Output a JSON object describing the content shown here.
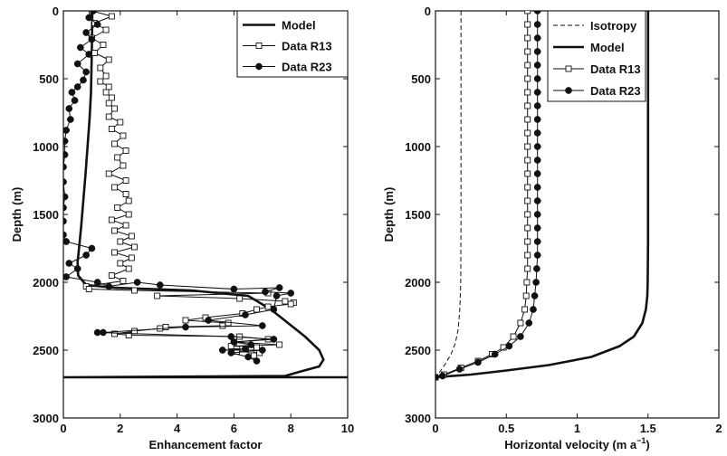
{
  "chart_data": [
    {
      "type": "line",
      "xlabel": "Enhancement factor",
      "ylabel": "Depth (m)",
      "xlim": [
        0,
        10
      ],
      "ylim": [
        0,
        3000
      ],
      "y_inverted": true,
      "xticks": [
        "0",
        "2",
        "4",
        "6",
        "8",
        "10"
      ],
      "yticks": [
        "0",
        "500",
        "1000",
        "1500",
        "2000",
        "2500",
        "3000"
      ],
      "legend_position": "top-right",
      "legend": [
        "Model",
        "Data R13",
        "Data R23"
      ],
      "colors": {
        "ink": "#111111",
        "open_marker_fill": "#ffffff"
      },
      "series": [
        {
          "name": "Model",
          "style": "solid-thick",
          "points": [
            [
              1.02,
              0
            ],
            [
              1.0,
              300
            ],
            [
              0.97,
              600
            ],
            [
              0.92,
              800
            ],
            [
              0.85,
              1000
            ],
            [
              0.78,
              1200
            ],
            [
              0.7,
              1400
            ],
            [
              0.62,
              1600
            ],
            [
              0.55,
              1750
            ],
            [
              0.5,
              1850
            ],
            [
              0.52,
              1950
            ],
            [
              0.8,
              2020
            ],
            [
              1.8,
              2040
            ],
            [
              4.5,
              2060
            ],
            [
              6.5,
              2100
            ],
            [
              7.3,
              2200
            ],
            [
              7.9,
              2300
            ],
            [
              8.5,
              2400
            ],
            [
              9.0,
              2500
            ],
            [
              9.15,
              2570
            ],
            [
              9.0,
              2620
            ],
            [
              8.3,
              2660
            ],
            [
              7.8,
              2690
            ],
            [
              0,
              2700
            ],
            [
              10,
              2700
            ]
          ]
        },
        {
          "name": "Data R13",
          "marker": "open-square",
          "points": [
            [
              1.0,
              0
            ],
            [
              1.7,
              40
            ],
            [
              1.1,
              90
            ],
            [
              1.5,
              140
            ],
            [
              1.0,
              200
            ],
            [
              1.4,
              250
            ],
            [
              1.1,
              310
            ],
            [
              1.6,
              360
            ],
            [
              1.3,
              420
            ],
            [
              1.5,
              480
            ],
            [
              1.3,
              520
            ],
            [
              1.6,
              560
            ],
            [
              1.5,
              600
            ],
            [
              1.7,
              640
            ],
            [
              1.6,
              680
            ],
            [
              1.8,
              720
            ],
            [
              1.6,
              780
            ],
            [
              2.0,
              820
            ],
            [
              1.7,
              870
            ],
            [
              2.1,
              920
            ],
            [
              1.8,
              980
            ],
            [
              2.2,
              1030
            ],
            [
              1.9,
              1080
            ],
            [
              2.1,
              1140
            ],
            [
              1.6,
              1200
            ],
            [
              2.2,
              1250
            ],
            [
              1.8,
              1300
            ],
            [
              2.2,
              1350
            ],
            [
              2.3,
              1400
            ],
            [
              1.9,
              1450
            ],
            [
              2.3,
              1500
            ],
            [
              1.7,
              1540
            ],
            [
              2.2,
              1580
            ],
            [
              1.8,
              1620
            ],
            [
              2.4,
              1660
            ],
            [
              2.0,
              1700
            ],
            [
              2.5,
              1740
            ],
            [
              1.8,
              1780
            ],
            [
              2.4,
              1820
            ],
            [
              2.0,
              1860
            ],
            [
              2.3,
              1900
            ],
            [
              1.7,
              1950
            ],
            [
              2.1,
              1990
            ],
            [
              0.8,
              2030
            ],
            [
              0.9,
              2050
            ],
            [
              2.5,
              2060
            ],
            [
              7.2,
              2080
            ],
            [
              3.3,
              2100
            ],
            [
              6.2,
              2120
            ],
            [
              7.8,
              2140
            ],
            [
              8.1,
              2150
            ],
            [
              8.0,
              2160
            ],
            [
              7.2,
              2180
            ],
            [
              6.8,
              2200
            ],
            [
              6.3,
              2230
            ],
            [
              5.0,
              2260
            ],
            [
              4.3,
              2280
            ],
            [
              5.8,
              2300
            ],
            [
              5.6,
              2320
            ],
            [
              3.6,
              2330
            ],
            [
              3.4,
              2340
            ],
            [
              2.5,
              2360
            ],
            [
              1.8,
              2380
            ],
            [
              2.3,
              2390
            ],
            [
              6.2,
              2400
            ],
            [
              7.2,
              2420
            ],
            [
              6.0,
              2440
            ],
            [
              7.6,
              2460
            ],
            [
              5.9,
              2470
            ],
            [
              6.8,
              2480
            ],
            [
              6.3,
              2490
            ],
            [
              6.6,
              2500
            ],
            [
              6.1,
              2510
            ],
            [
              6.9,
              2520
            ],
            [
              6.7,
              2540
            ]
          ]
        },
        {
          "name": "Data R23",
          "marker": "filled-circle",
          "points": [
            [
              1.05,
              0
            ],
            [
              0.9,
              50
            ],
            [
              1.2,
              100
            ],
            [
              0.8,
              160
            ],
            [
              1.0,
              210
            ],
            [
              0.6,
              270
            ],
            [
              0.9,
              320
            ],
            [
              0.5,
              390
            ],
            [
              0.8,
              450
            ],
            [
              0.7,
              510
            ],
            [
              0.5,
              560
            ],
            [
              0.3,
              600
            ],
            [
              0.4,
              660
            ],
            [
              0.2,
              720
            ],
            [
              0.25,
              800
            ],
            [
              0.1,
              880
            ],
            [
              0.05,
              960
            ],
            [
              0.05,
              1060
            ],
            [
              0.0,
              1150
            ],
            [
              0.0,
              1260
            ],
            [
              0.05,
              1370
            ],
            [
              0.0,
              1450
            ],
            [
              0.0,
              1550
            ],
            [
              0.0,
              1650
            ],
            [
              0.1,
              1700
            ],
            [
              1.0,
              1750
            ],
            [
              0.8,
              1800
            ],
            [
              0.2,
              1860
            ],
            [
              0.5,
              1900
            ],
            [
              0.1,
              1960
            ],
            [
              1.2,
              2000
            ],
            [
              1.6,
              2030
            ],
            [
              2.6,
              2000
            ],
            [
              3.4,
              2020
            ],
            [
              6.0,
              2050
            ],
            [
              7.6,
              2040
            ],
            [
              7.1,
              2070
            ],
            [
              8.0,
              2080
            ],
            [
              7.5,
              2100
            ],
            [
              7.4,
              2200
            ],
            [
              6.4,
              2240
            ],
            [
              5.1,
              2280
            ],
            [
              7.0,
              2320
            ],
            [
              4.3,
              2330
            ],
            [
              1.4,
              2370
            ],
            [
              1.2,
              2370
            ],
            [
              5.9,
              2400
            ],
            [
              7.4,
              2420
            ],
            [
              6.0,
              2440
            ],
            [
              6.6,
              2460
            ],
            [
              6.4,
              2490
            ],
            [
              5.6,
              2500
            ],
            [
              7.0,
              2500
            ],
            [
              5.9,
              2520
            ],
            [
              6.5,
              2550
            ],
            [
              6.8,
              2580
            ]
          ]
        }
      ]
    },
    {
      "type": "line",
      "xlabel": "Horizontal velocity (m a",
      "xlabel_sup": "−1",
      "xlabel_close": ")",
      "ylabel": "Depth (m)",
      "xlim": [
        0,
        2
      ],
      "ylim": [
        0,
        3000
      ],
      "y_inverted": true,
      "xticks": [
        "0",
        "0.5",
        "1",
        "1.5",
        "2"
      ],
      "yticks": [
        "0",
        "500",
        "1000",
        "1500",
        "2000",
        "2500",
        "3000"
      ],
      "legend_position": "top-right",
      "legend": [
        "Isotropy",
        "Model",
        "Data R13",
        "Data R23"
      ],
      "colors": {
        "ink": "#111111",
        "open_marker_fill": "#ffffff"
      },
      "series": [
        {
          "name": "Isotropy",
          "style": "dashed",
          "points": [
            [
              0.18,
              0
            ],
            [
              0.18,
              1500
            ],
            [
              0.178,
              2000
            ],
            [
              0.172,
              2200
            ],
            [
              0.16,
              2350
            ],
            [
              0.14,
              2450
            ],
            [
              0.11,
              2530
            ],
            [
              0.07,
              2600
            ],
            [
              0.03,
              2660
            ],
            [
              0,
              2700
            ]
          ]
        },
        {
          "name": "Model",
          "style": "solid-thick",
          "points": [
            [
              1.5,
              0
            ],
            [
              1.5,
              1000
            ],
            [
              1.5,
              1700
            ],
            [
              1.498,
              2000
            ],
            [
              1.495,
              2100
            ],
            [
              1.485,
              2200
            ],
            [
              1.46,
              2300
            ],
            [
              1.4,
              2400
            ],
            [
              1.3,
              2470
            ],
            [
              1.1,
              2550
            ],
            [
              0.8,
              2610
            ],
            [
              0.5,
              2650
            ],
            [
              0.25,
              2680
            ],
            [
              0,
              2700
            ]
          ]
        },
        {
          "name": "Data R13",
          "marker": "open-square",
          "points": [
            [
              0.65,
              0
            ],
            [
              0.65,
              100
            ],
            [
              0.65,
              200
            ],
            [
              0.65,
              300
            ],
            [
              0.65,
              400
            ],
            [
              0.65,
              500
            ],
            [
              0.65,
              600
            ],
            [
              0.65,
              700
            ],
            [
              0.65,
              800
            ],
            [
              0.65,
              900
            ],
            [
              0.65,
              1000
            ],
            [
              0.65,
              1100
            ],
            [
              0.65,
              1200
            ],
            [
              0.65,
              1300
            ],
            [
              0.65,
              1400
            ],
            [
              0.65,
              1500
            ],
            [
              0.65,
              1600
            ],
            [
              0.65,
              1700
            ],
            [
              0.65,
              1800
            ],
            [
              0.65,
              1900
            ],
            [
              0.645,
              2000
            ],
            [
              0.64,
              2100
            ],
            [
              0.63,
              2200
            ],
            [
              0.6,
              2300
            ],
            [
              0.55,
              2400
            ],
            [
              0.48,
              2480
            ],
            [
              0.4,
              2530
            ],
            [
              0.3,
              2580
            ],
            [
              0.18,
              2630
            ],
            [
              0.06,
              2680
            ],
            [
              0,
              2700
            ]
          ]
        },
        {
          "name": "Data R23",
          "marker": "filled-circle",
          "points": [
            [
              0.72,
              0
            ],
            [
              0.72,
              100
            ],
            [
              0.72,
              200
            ],
            [
              0.72,
              300
            ],
            [
              0.72,
              400
            ],
            [
              0.72,
              500
            ],
            [
              0.72,
              600
            ],
            [
              0.72,
              700
            ],
            [
              0.72,
              800
            ],
            [
              0.72,
              900
            ],
            [
              0.72,
              1000
            ],
            [
              0.72,
              1100
            ],
            [
              0.72,
              1200
            ],
            [
              0.72,
              1300
            ],
            [
              0.72,
              1400
            ],
            [
              0.72,
              1500
            ],
            [
              0.72,
              1600
            ],
            [
              0.72,
              1700
            ],
            [
              0.72,
              1800
            ],
            [
              0.715,
              1900
            ],
            [
              0.71,
              2000
            ],
            [
              0.7,
              2100
            ],
            [
              0.69,
              2200
            ],
            [
              0.66,
              2300
            ],
            [
              0.6,
              2400
            ],
            [
              0.52,
              2470
            ],
            [
              0.42,
              2530
            ],
            [
              0.3,
              2590
            ],
            [
              0.17,
              2640
            ],
            [
              0.05,
              2690
            ],
            [
              0,
              2700
            ]
          ]
        }
      ]
    }
  ]
}
